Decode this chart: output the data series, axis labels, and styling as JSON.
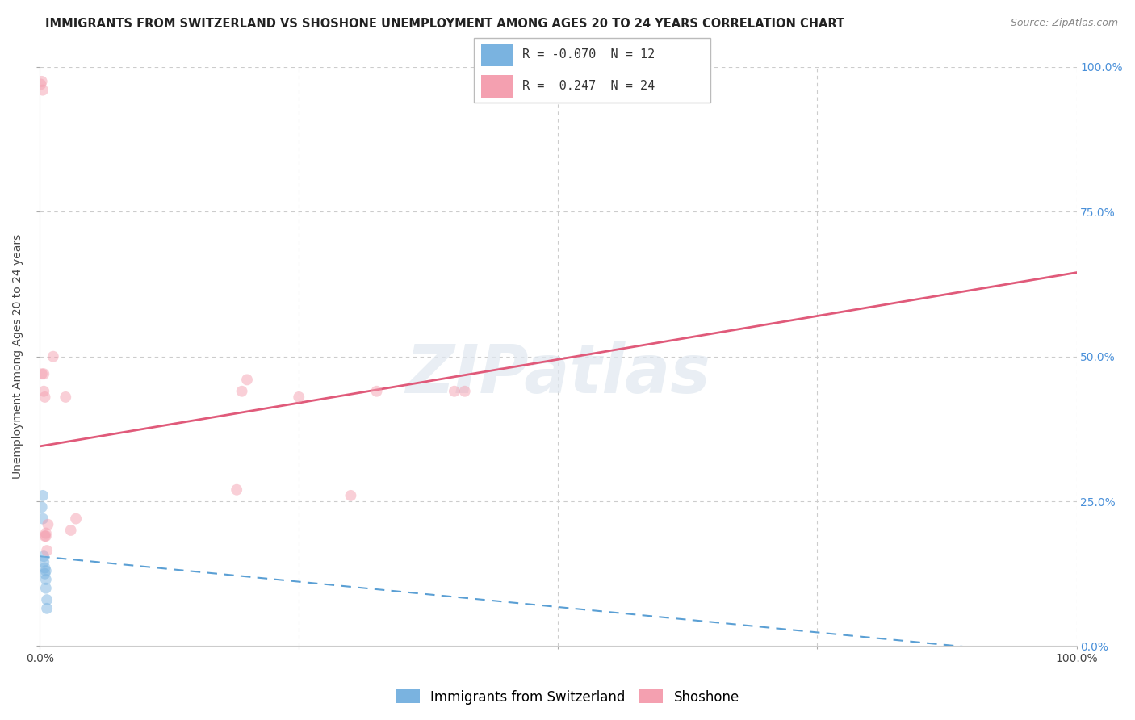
{
  "title": "IMMIGRANTS FROM SWITZERLAND VS SHOSHONE UNEMPLOYMENT AMONG AGES 20 TO 24 YEARS CORRELATION CHART",
  "source": "Source: ZipAtlas.com",
  "ylabel": "Unemployment Among Ages 20 to 24 years",
  "xlim": [
    0,
    1.0
  ],
  "ylim": [
    0,
    1.0
  ],
  "xticks": [
    0.0,
    0.25,
    0.5,
    0.75,
    1.0
  ],
  "xticklabels": [
    "0.0%",
    "",
    "",
    "",
    "100.0%"
  ],
  "yticks": [
    0.0,
    0.25,
    0.5,
    0.75,
    1.0
  ],
  "left_yticklabels": [
    "",
    "",
    "",
    "",
    ""
  ],
  "right_yticklabels": [
    "0.0%",
    "25.0%",
    "50.0%",
    "75.0%",
    "100.0%"
  ],
  "background_color": "#ffffff",
  "grid_color": "#cccccc",
  "watermark_text": "ZIPatlas",
  "legend_box": {
    "series1_label": "Immigrants from Switzerland",
    "series1_color": "#7ab3e0",
    "series1_R": "-0.070",
    "series1_N": "12",
    "series2_label": "Shoshone",
    "series2_color": "#f4a0b0",
    "series2_R": "0.247",
    "series2_N": "24"
  },
  "swiss_points": [
    [
      0.002,
      0.24
    ],
    [
      0.003,
      0.26
    ],
    [
      0.003,
      0.22
    ],
    [
      0.004,
      0.155
    ],
    [
      0.004,
      0.145
    ],
    [
      0.005,
      0.135
    ],
    [
      0.005,
      0.125
    ],
    [
      0.006,
      0.13
    ],
    [
      0.006,
      0.115
    ],
    [
      0.006,
      0.1
    ],
    [
      0.007,
      0.08
    ],
    [
      0.007,
      0.065
    ]
  ],
  "shoshone_points": [
    [
      0.001,
      0.97
    ],
    [
      0.002,
      0.975
    ],
    [
      0.002,
      0.47
    ],
    [
      0.003,
      0.96
    ],
    [
      0.004,
      0.47
    ],
    [
      0.004,
      0.44
    ],
    [
      0.005,
      0.43
    ],
    [
      0.005,
      0.19
    ],
    [
      0.006,
      0.195
    ],
    [
      0.006,
      0.19
    ],
    [
      0.007,
      0.165
    ],
    [
      0.008,
      0.21
    ],
    [
      0.013,
      0.5
    ],
    [
      0.025,
      0.43
    ],
    [
      0.03,
      0.2
    ],
    [
      0.035,
      0.22
    ],
    [
      0.19,
      0.27
    ],
    [
      0.195,
      0.44
    ],
    [
      0.2,
      0.46
    ],
    [
      0.25,
      0.43
    ],
    [
      0.3,
      0.26
    ],
    [
      0.325,
      0.44
    ],
    [
      0.4,
      0.44
    ],
    [
      0.41,
      0.44
    ]
  ],
  "swiss_line_color": "#5a9fd4",
  "swiss_line_dash": [
    6,
    4
  ],
  "shoshone_line_color": "#e05a7a",
  "dot_size": 100,
  "dot_alpha": 0.5,
  "title_fontsize": 10.5,
  "source_fontsize": 9,
  "tick_fontsize": 10,
  "ylabel_fontsize": 10,
  "legend_fontsize": 11
}
